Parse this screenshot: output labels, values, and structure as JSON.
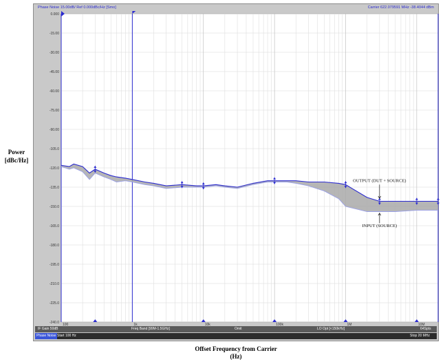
{
  "window": {
    "title_left": "Phase Noise 15.00dB/ Ref 0.000dBc/Hz [Smo]",
    "title_right": "Carrier 622.079591 MHz   -38.4044 dBm"
  },
  "status": {
    "bar1": [
      "IF Gain 50dB",
      "Freq Band [99M-1.5GHz]",
      "Omit",
      "LO Opt [<150kHz]",
      "64Spts"
    ],
    "bar2": [
      "Phase Noise",
      "Start 100 Hz",
      "Stop 20 MHz"
    ]
  },
  "colors": {
    "trace_output": "#2a2ad0",
    "trace_input": "#9aa0e8",
    "fill_between": "#a9a9a9",
    "marker": "#2a2ad0",
    "plot_bg": "#ffffff",
    "frame_bg": "#c9c9c9"
  },
  "chart_data": {
    "type": "line",
    "title": "Phase Noise 15.00dB/ Ref 0.000dBc/Hz [Smo]",
    "xlabel": "Offset Frequency from Carrier (Hz)",
    "ylabel": "Power [dBc/Hz]",
    "x_scale": "log",
    "xlim": [
      100,
      20000000
    ],
    "ylim": [
      -240,
      0
    ],
    "y_ticks": [
      "0.000",
      "-15.00",
      "-30.00",
      "-45.00",
      "-60.00",
      "-75.00",
      "-90.00",
      "-105.0",
      "-120.0",
      "-135.0",
      "-150.0",
      "-165.0",
      "-180.0",
      "-195.0",
      "-210.0",
      "-225.0",
      "-240.0"
    ],
    "x_tick_labels": [
      {
        "x": 100,
        "label": "100"
      },
      {
        "x": 1000,
        "label": "1k"
      },
      {
        "x": 10000,
        "label": "10k"
      },
      {
        "x": 100000,
        "label": "100k"
      },
      {
        "x": 1000000,
        "label": "1M"
      },
      {
        "x": 10000000,
        "label": "10M"
      }
    ],
    "grid": true,
    "series": [
      {
        "name": "OUTPUT (DUT + SOURCE)",
        "x": [
          100,
          130,
          150,
          200,
          250,
          300,
          400,
          500,
          600,
          800,
          1000,
          1500,
          2000,
          3000,
          5000,
          8000,
          10000,
          15000,
          20000,
          30000,
          50000,
          80000,
          100000,
          150000,
          200000,
          300000,
          500000,
          800000,
          1000000,
          2000000,
          3000000,
          5000000,
          10000000,
          20000000
        ],
        "y": [
          -118,
          -119,
          -117,
          -119,
          -124,
          -121,
          -124,
          -126,
          -127,
          -128,
          -129,
          -131,
          -132,
          -134,
          -133,
          -134,
          -134,
          -133,
          -134,
          -135,
          -132,
          -130,
          -130,
          -130,
          -130,
          -131,
          -131,
          -132,
          -133,
          -143,
          -146,
          -146,
          -146,
          -146
        ]
      },
      {
        "name": "INPUT (SOURCE)",
        "x": [
          100,
          130,
          150,
          200,
          250,
          300,
          400,
          500,
          600,
          800,
          1000,
          1500,
          2000,
          3000,
          5000,
          8000,
          10000,
          15000,
          20000,
          30000,
          50000,
          80000,
          100000,
          150000,
          200000,
          300000,
          500000,
          800000,
          1000000,
          2000000,
          3000000,
          5000000,
          10000000,
          20000000
        ],
        "y": [
          -119,
          -121,
          -120,
          -123,
          -129,
          -124,
          -127,
          -129,
          -131,
          -130,
          -131,
          -133,
          -134,
          -136,
          -135,
          -135,
          -135,
          -134,
          -135,
          -136,
          -133,
          -131,
          -131,
          -131,
          -132,
          -134,
          -138,
          -144,
          -150,
          -154,
          -154,
          -154,
          -153,
          -153
        ]
      }
    ],
    "markers": [
      300,
      5000,
      10000,
      100000,
      1000000,
      3000000,
      10000000,
      20000000
    ],
    "annotations": [
      {
        "text": "OUTPUT (DUT + SOURCE)",
        "at": "upper"
      },
      {
        "text": "INPUT (SOURCE)",
        "at": "lower"
      }
    ]
  }
}
